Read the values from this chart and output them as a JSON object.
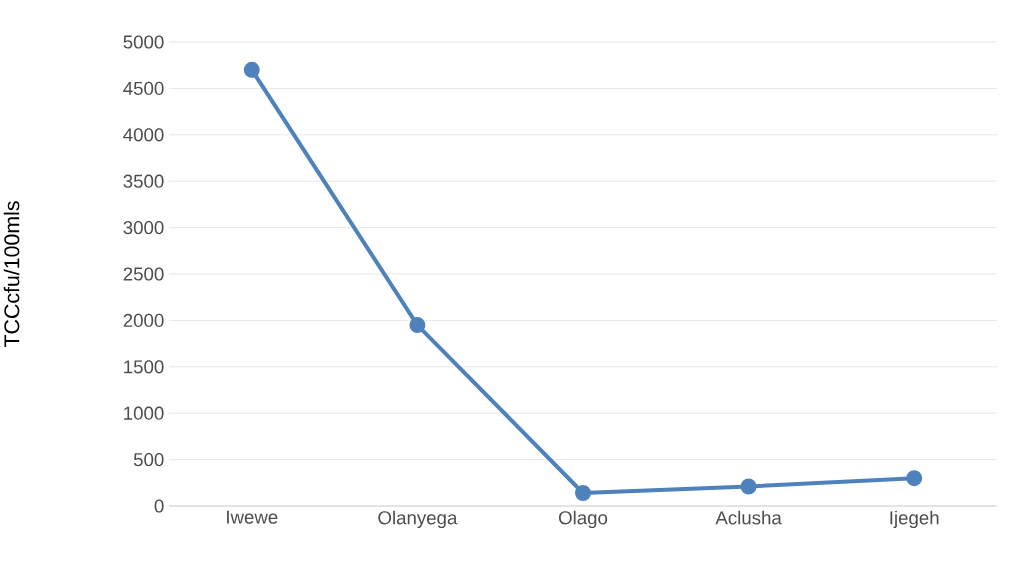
{
  "chart_data": {
    "type": "line",
    "ylabel": "TCCcfu/100mls",
    "categories": [
      "Iwewe",
      "Olanyega",
      "Olago",
      "Aclusha",
      "Ijegeh"
    ],
    "series": [
      {
        "color": "#4f81bd",
        "values": [
          4700,
          1950,
          140,
          210,
          300
        ]
      }
    ],
    "ylim": [
      0,
      5000
    ],
    "yticks": [
      0,
      500,
      1000,
      1500,
      2000,
      2500,
      3000,
      3500,
      4000,
      4500,
      5000
    ],
    "grid": "y",
    "marker": "circle",
    "line_style": "solid",
    "legend": false
  }
}
